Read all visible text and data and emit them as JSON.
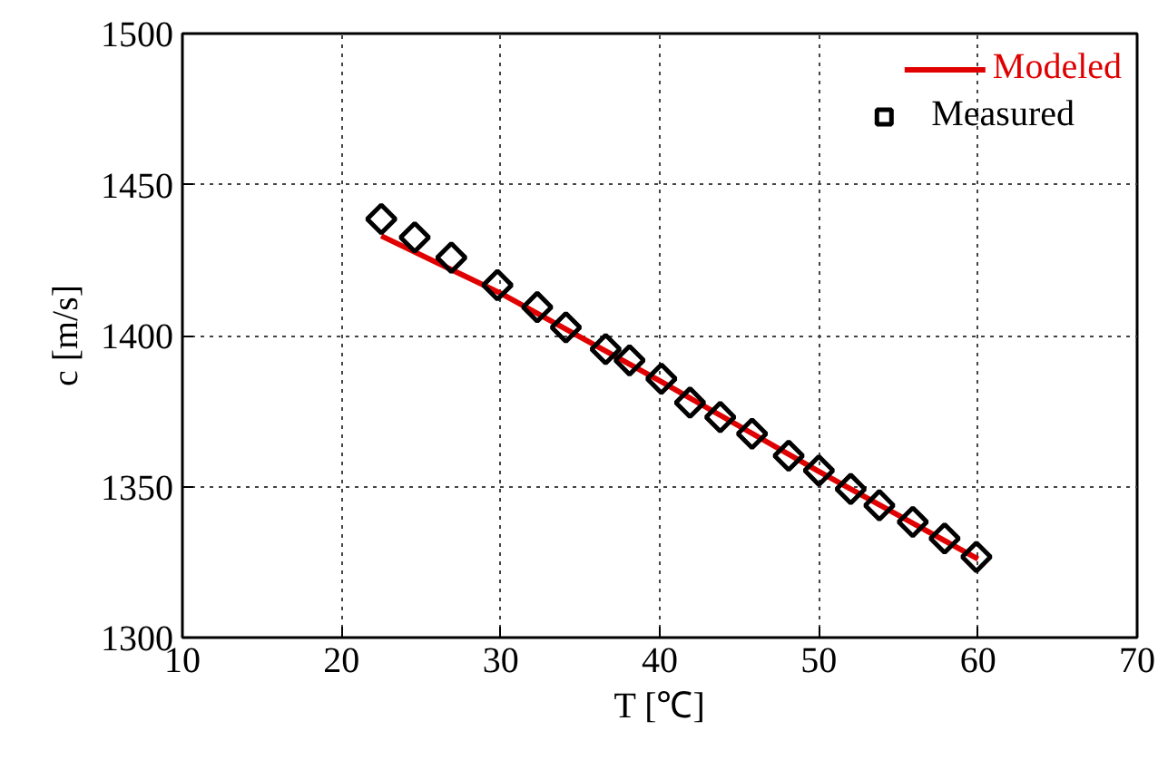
{
  "chart_data": {
    "type": "scatter",
    "xlabel": "T [℃]",
    "ylabel": "c [m/s]",
    "xlim": [
      10,
      70
    ],
    "ylim": [
      1300,
      1500
    ],
    "xticks": [
      10,
      20,
      30,
      40,
      50,
      60,
      70
    ],
    "yticks": [
      1300,
      1350,
      1400,
      1450,
      1500
    ],
    "grid": true,
    "legend": "top right",
    "series": [
      {
        "name": "Modeled",
        "type": "line",
        "color": "#e00000",
        "line_style": "solid",
        "marker": "none",
        "x": [
          22.5,
          30,
          40,
          50,
          60
        ],
        "values": [
          1433,
          1414,
          1385,
          1355,
          1326
        ]
      },
      {
        "name": "Measured",
        "color": "#000000",
        "marker": "diamond",
        "x": [
          22.5,
          24.6,
          26.9,
          29.8,
          32.3,
          34.1,
          36.6,
          38.1,
          40.1,
          41.9,
          43.8,
          45.8,
          48.1,
          50.0,
          52.0,
          53.8,
          55.9,
          57.9,
          59.9
        ],
        "values": [
          1438.6,
          1432.5,
          1425.8,
          1416.7,
          1409.4,
          1402.7,
          1395.5,
          1391.8,
          1385.7,
          1377.8,
          1373,
          1367.5,
          1360.2,
          1355.3,
          1349.2,
          1343.8,
          1338.3,
          1332.8,
          1326.7
        ]
      }
    ]
  }
}
